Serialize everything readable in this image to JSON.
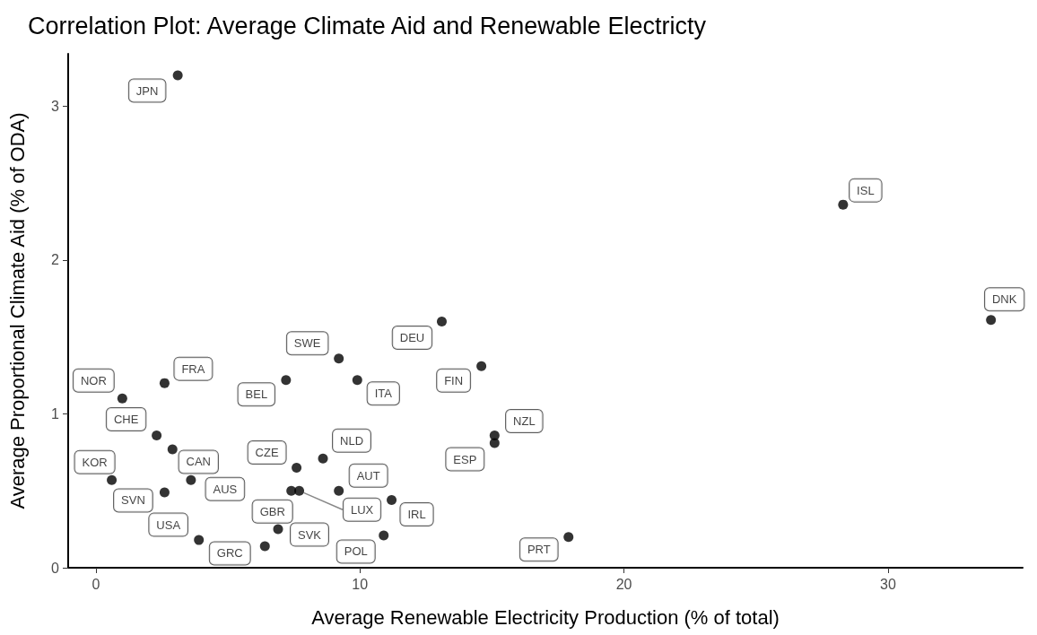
{
  "chart_data": {
    "type": "scatter",
    "title": "Correlation Plot: Average Climate Aid and Renewable Electricty",
    "xlabel": "Average Renewable Electricity Production (% of total)",
    "ylabel": "Average Proportional Climate Aid (% of ODA)",
    "x": [
      3.1,
      28.3,
      33.9,
      13.1,
      9.2,
      14.6,
      7.2,
      9.9,
      2.6,
      1.0,
      2.3,
      15.1,
      15.1,
      2.9,
      8.6,
      7.6,
      0.6,
      3.6,
      7.4,
      7.7,
      9.2,
      2.6,
      11.2,
      6.9,
      10.9,
      17.9,
      3.9,
      6.4
    ],
    "values": [
      3.2,
      2.36,
      1.61,
      1.6,
      1.36,
      1.31,
      1.22,
      1.22,
      1.2,
      1.1,
      0.86,
      0.86,
      0.81,
      0.77,
      0.71,
      0.65,
      0.57,
      0.57,
      0.5,
      0.5,
      0.5,
      0.49,
      0.44,
      0.25,
      0.21,
      0.2,
      0.18,
      0.14
    ],
    "value_labels": [
      "JPN",
      "ISL",
      "DNK",
      "DEU",
      "SWE",
      "FIN",
      "BEL",
      "ITA",
      "FRA",
      "NOR",
      "CHE",
      "NZL",
      "ESP",
      "CAN",
      "NLD",
      "CZE",
      "KOR",
      "AUS",
      "GBR",
      "LUX",
      "AUT",
      "SVN",
      "IRL",
      "SVK",
      "POL",
      "PRT",
      "USA",
      "GRC"
    ],
    "color": "#000000",
    "marker": "circle",
    "grid": false,
    "xlim": [
      -1.05,
      35.1
    ],
    "xticks": [
      0,
      10,
      20,
      30
    ],
    "ylim": [
      0,
      3.34
    ],
    "yticks": [
      0,
      1,
      2,
      3
    ]
  }
}
